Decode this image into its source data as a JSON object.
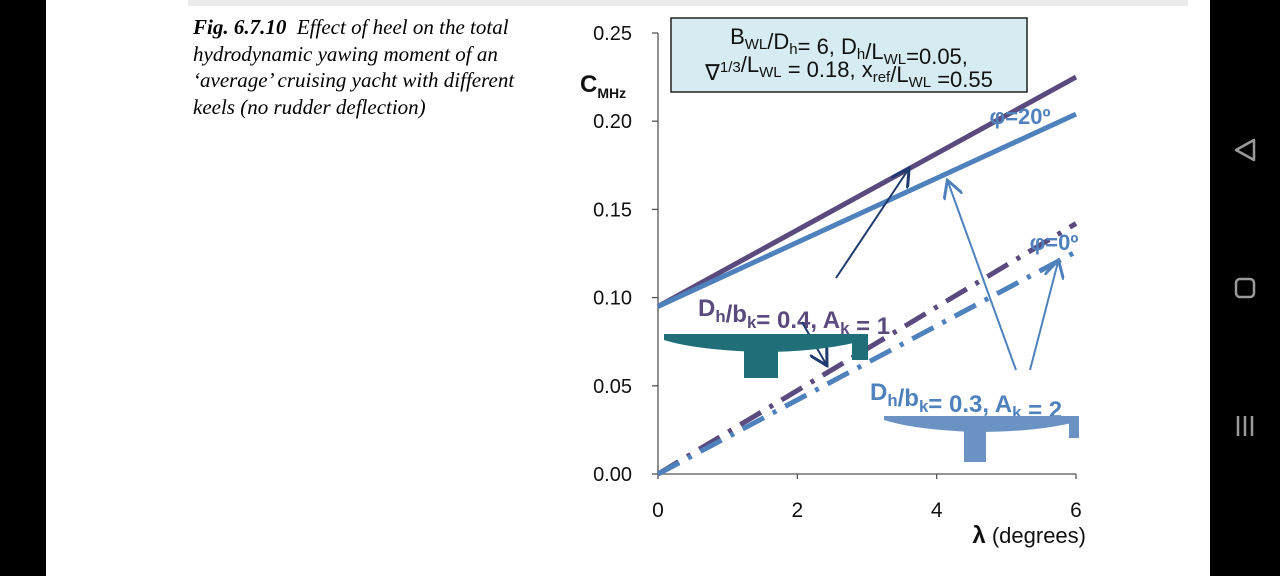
{
  "caption": {
    "fig_label": "Fig. 6.7.10",
    "text": "Effect of heel on the total hydrodynamic yawing moment of an ‘average’ cruising yacht with different keels (no rudder deflection)"
  },
  "params_box": {
    "line1": "B<sub>WL</sub>/D<sub>h</sub>= 6,  D<sub>h</sub>/L<sub>WL</sub>=0.05,",
    "line2": "∇<sup>1/3</sup>/L<sub>WL</sub> = 0.18, x<sub>ref</sub>/L<sub>WL</sub> =0.55"
  },
  "annotations": {
    "phi20": "φ=20º",
    "phi0": "φ=0º",
    "keel1": "D<sub>h</sub>/b<sub>k</sub>= 0.4, A<sub>k</sub> = 1",
    "keel2": "D<sub>h</sub>/b<sub>k</sub>= 0.3, A<sub>k</sub> = 2"
  },
  "chart_data": {
    "type": "line",
    "ylabel": "C<tspan font-size=\"14\" dy=\"6\">MHz</tspan>",
    "xlabel_symbol": "λ",
    "xlabel_unit": "(degrees)",
    "xlim": [
      0,
      6
    ],
    "ylim": [
      0,
      0.25
    ],
    "xticks": [
      0,
      2,
      4,
      6
    ],
    "yticks": [
      "0.00",
      "0.05",
      "0.10",
      "0.15",
      "0.20",
      "0.25"
    ],
    "series": [
      {
        "keel": "Dh/bk=0.4, Ak=1",
        "heel": "20",
        "x": [
          0,
          6
        ],
        "y": [
          0.095,
          0.225
        ],
        "color": "#5b4a7e",
        "style": "solid"
      },
      {
        "keel": "Dh/bk=0.3, Ak=2",
        "heel": "20",
        "x": [
          0,
          6
        ],
        "y": [
          0.095,
          0.204
        ],
        "color": "#4f81bd",
        "style": "solid"
      },
      {
        "keel": "Dh/bk=0.4, Ak=1",
        "heel": "0",
        "x": [
          0,
          6
        ],
        "y": [
          0.0,
          0.142
        ],
        "color": "#5b4a7e",
        "style": "dashdot"
      },
      {
        "keel": "Dh/bk=0.3, Ak=2",
        "heel": "0",
        "x": [
          0,
          6
        ],
        "y": [
          0.0,
          0.126
        ],
        "color": "#4f81bd",
        "style": "dashdot"
      }
    ],
    "colors": {
      "axis": "#555555",
      "box_fill": "#d6ecf2",
      "keel1_fill": "#1f6e78",
      "keel2_fill": "#6a93c4",
      "text1": "#5b4a7e",
      "text2": "#4f81bd"
    }
  },
  "nav": {
    "back": "back-icon",
    "home": "home-icon",
    "recents": "recents-icon"
  }
}
